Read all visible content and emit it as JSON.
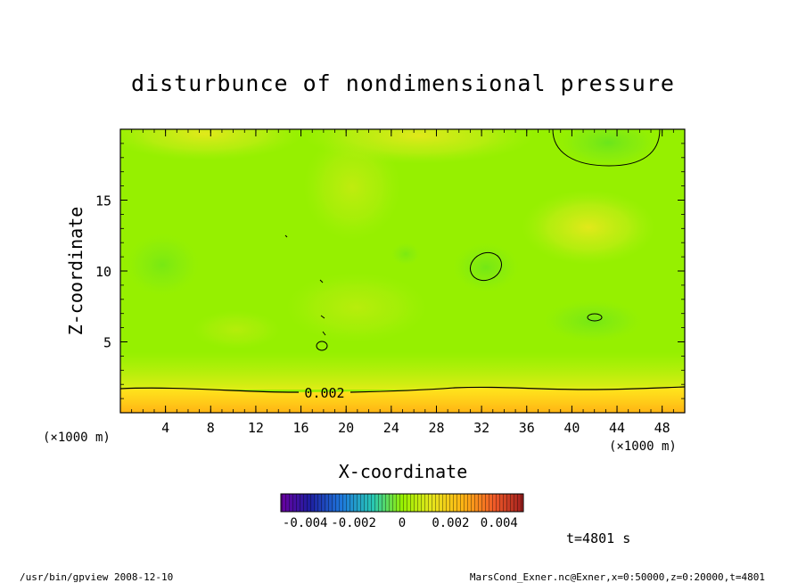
{
  "chart_data": {
    "type": "heatmap",
    "title": "disturbunce of nondimensional pressure",
    "xlabel": "X-coordinate",
    "ylabel": "Z-coordinate",
    "x_unit": "(×1000 m)",
    "x_unit_right": "(×1000 m)",
    "x_ticks": [
      4,
      8,
      12,
      16,
      20,
      24,
      28,
      32,
      36,
      40,
      44,
      48
    ],
    "y_ticks": [
      5,
      10,
      15
    ],
    "xlim": [
      0,
      50
    ],
    "ylim": [
      0,
      20
    ],
    "contour_label": "0.002",
    "contour_level": 0.002,
    "colorbar": {
      "range": [
        -0.005,
        0.005
      ],
      "tick_labels": [
        "-0.004",
        "-0.002",
        "0",
        "0.002",
        "0.004"
      ]
    },
    "time_label": "t=4801 s"
  },
  "footer": {
    "left": "/usr/bin/gpview  2008-12-10",
    "right": "MarsCond_Exner.nc@Exner,x=0:50000,z=0:20000,t=4801"
  },
  "colors": {
    "field_base": "#96f000",
    "warm_region": "#e6e61c",
    "bottom_layer": "#ffbe14",
    "cool_region": "#64e61e"
  }
}
